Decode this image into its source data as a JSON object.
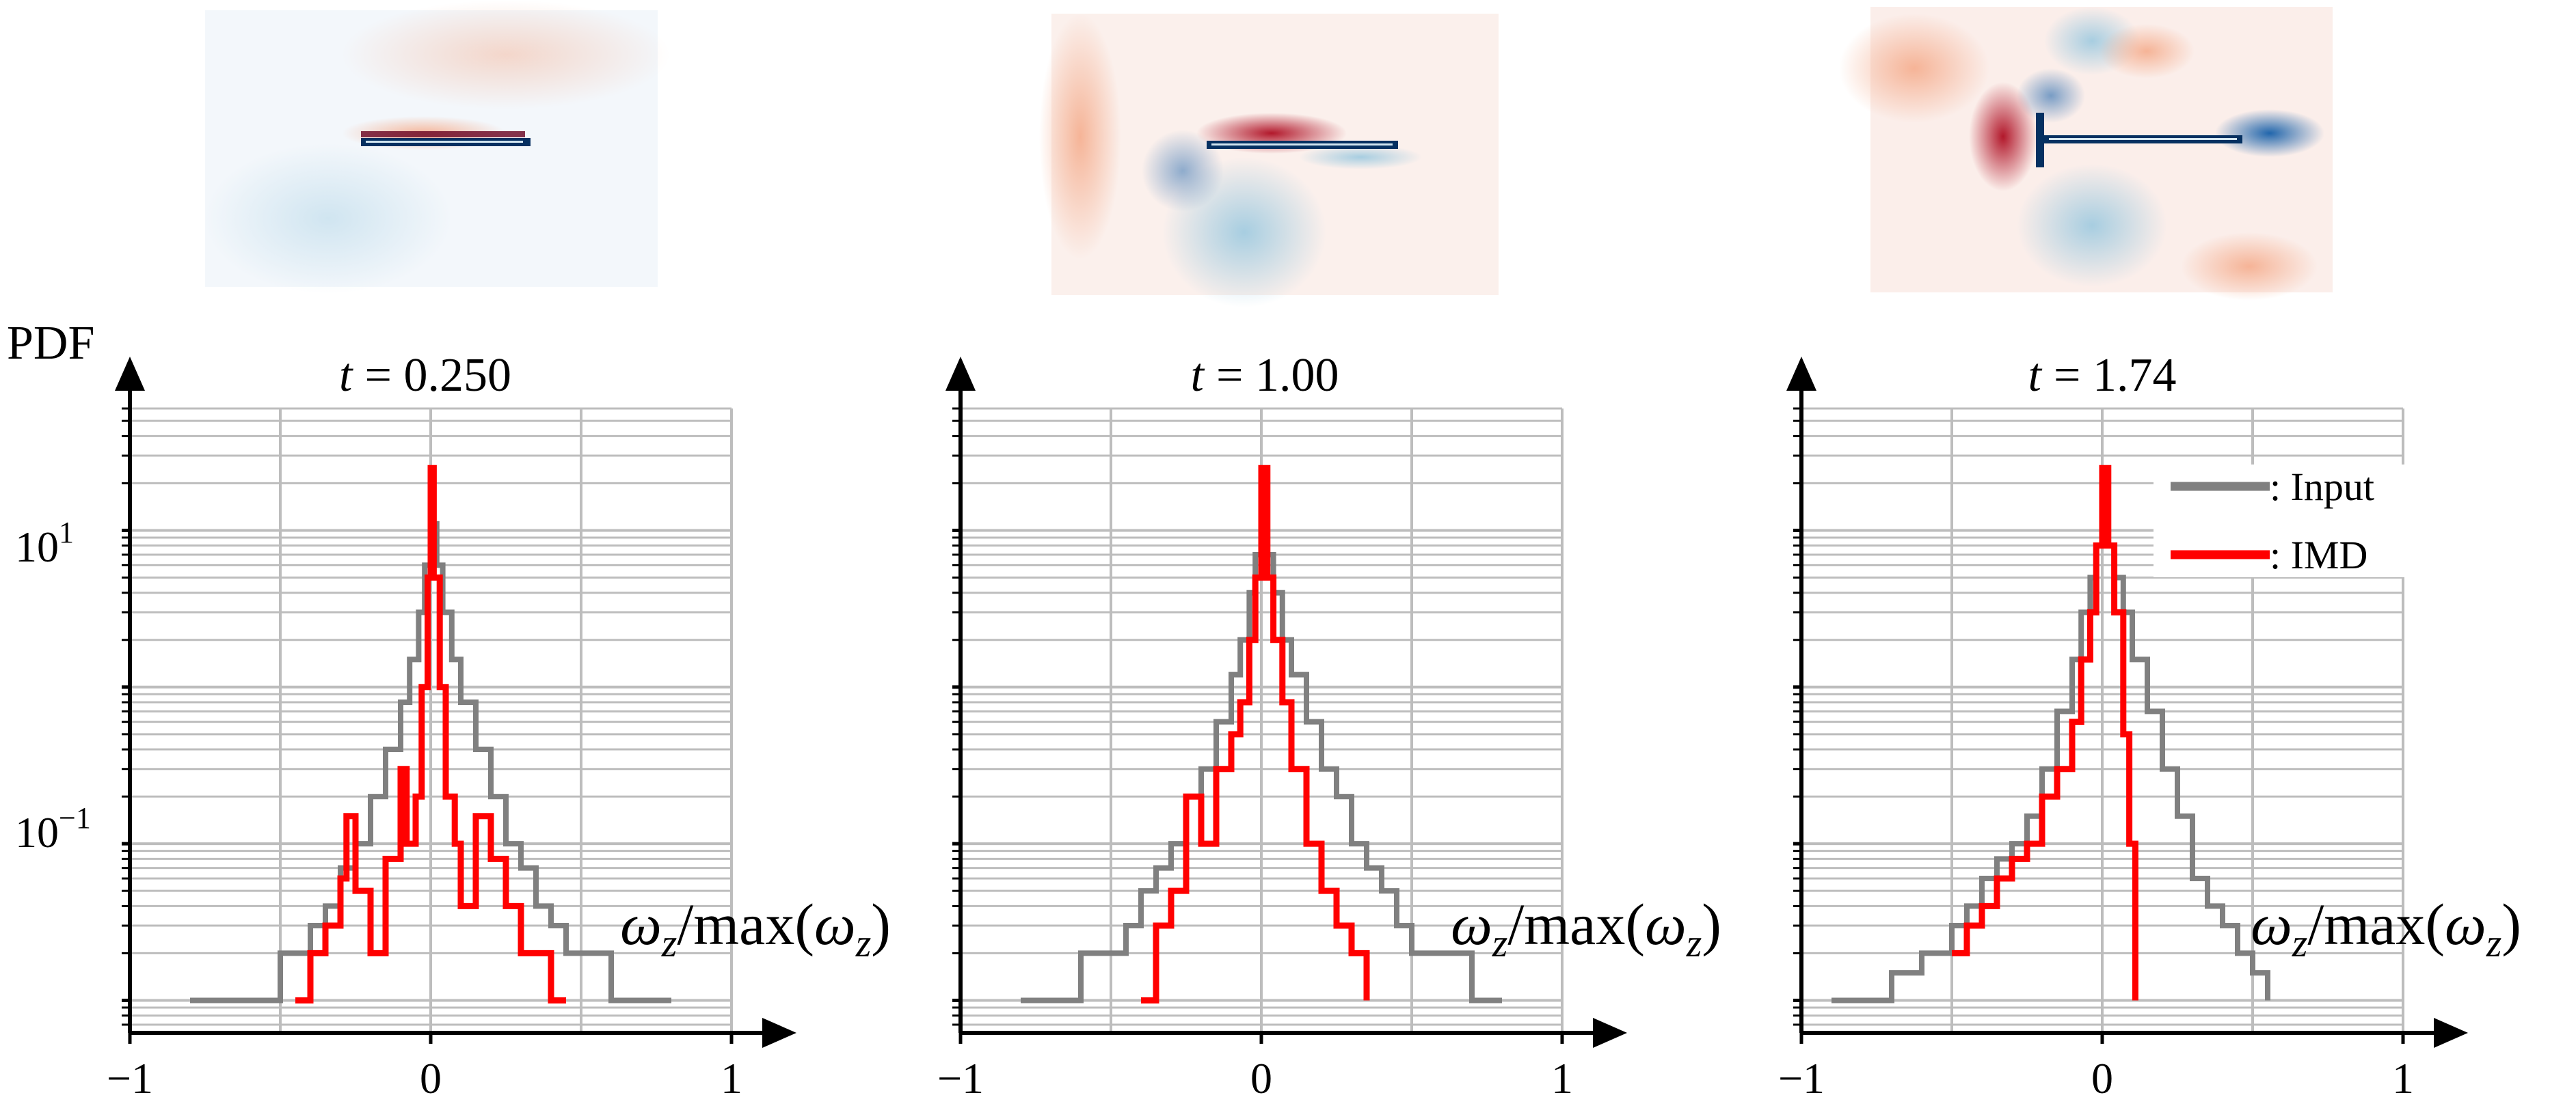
{
  "figure": {
    "ylabel": "PDF",
    "xlabel_parts": [
      "ω",
      "z",
      "/max(",
      "ω",
      "z",
      ")"
    ],
    "legend": [
      {
        "label": ": Input",
        "color": "#808080"
      },
      {
        "label": ": IMD",
        "color": "#ff0000"
      }
    ],
    "y_tick_labels": [
      {
        "base": "10",
        "exp": "1"
      },
      {
        "base": "10",
        "exp": "−1"
      }
    ],
    "colormap": {
      "negative": "#2166ac",
      "positive": "#b2182b",
      "neutral": "#f7f7f7"
    }
  },
  "chart_data": [
    {
      "type": "line",
      "title_prefix": "t",
      "title_value": "= 0.250",
      "title": "t = 0.250",
      "xlabel": "ωz/max(ωz)",
      "ylabel": "PDF",
      "xlim": [
        -1,
        1
      ],
      "ylim": [
        0.007,
        60
      ],
      "y_scale": "log",
      "x_ticks": [
        "−1",
        "0",
        "1"
      ],
      "grid": true,
      "series": [
        {
          "name": "Input",
          "color": "#808080",
          "points": [
            [
              -0.8,
              0.01
            ],
            [
              -0.7,
              0.01
            ],
            [
              -0.6,
              0.01
            ],
            [
              -0.5,
              0.02
            ],
            [
              -0.45,
              0.02
            ],
            [
              -0.4,
              0.03
            ],
            [
              -0.35,
              0.04
            ],
            [
              -0.3,
              0.07
            ],
            [
              -0.25,
              0.1
            ],
            [
              -0.2,
              0.2
            ],
            [
              -0.15,
              0.4
            ],
            [
              -0.1,
              0.8
            ],
            [
              -0.07,
              1.5
            ],
            [
              -0.04,
              3
            ],
            [
              -0.02,
              6
            ],
            [
              0,
              11
            ],
            [
              0.02,
              6
            ],
            [
              0.04,
              3
            ],
            [
              0.07,
              1.5
            ],
            [
              0.1,
              0.8
            ],
            [
              0.15,
              0.4
            ],
            [
              0.2,
              0.2
            ],
            [
              0.25,
              0.1
            ],
            [
              0.3,
              0.07
            ],
            [
              0.35,
              0.04
            ],
            [
              0.4,
              0.03
            ],
            [
              0.45,
              0.02
            ],
            [
              0.5,
              0.02
            ],
            [
              0.6,
              0.01
            ],
            [
              0.7,
              0.01
            ],
            [
              0.8,
              0.01
            ]
          ]
        },
        {
          "name": "IMD",
          "color": "#ff0000",
          "points": [
            [
              -0.45,
              0.01
            ],
            [
              -0.4,
              0.02
            ],
            [
              -0.35,
              0.03
            ],
            [
              -0.3,
              0.06
            ],
            [
              -0.28,
              0.15
            ],
            [
              -0.25,
              0.05
            ],
            [
              -0.2,
              0.02
            ],
            [
              -0.15,
              0.08
            ],
            [
              -0.1,
              0.3
            ],
            [
              -0.08,
              0.1
            ],
            [
              -0.05,
              0.2
            ],
            [
              -0.03,
              1
            ],
            [
              -0.01,
              5
            ],
            [
              0,
              25
            ],
            [
              0.01,
              5
            ],
            [
              0.03,
              1
            ],
            [
              0.05,
              0.2
            ],
            [
              0.08,
              0.1
            ],
            [
              0.1,
              0.04
            ],
            [
              0.15,
              0.15
            ],
            [
              0.2,
              0.08
            ],
            [
              0.25,
              0.04
            ],
            [
              0.3,
              0.02
            ],
            [
              0.35,
              0.02
            ],
            [
              0.4,
              0.01
            ],
            [
              0.45,
              0.01
            ]
          ]
        }
      ]
    },
    {
      "type": "line",
      "title_prefix": "t",
      "title_value": "= 1.00",
      "title": "t = 1.00",
      "xlabel": "ωz/max(ωz)",
      "ylabel": "PDF",
      "xlim": [
        -1,
        1
      ],
      "ylim": [
        0.007,
        60
      ],
      "y_scale": "log",
      "x_ticks": [
        "−1",
        "0",
        "1"
      ],
      "grid": true,
      "series": [
        {
          "name": "Input",
          "color": "#808080",
          "points": [
            [
              -0.8,
              0.01
            ],
            [
              -0.7,
              0.01
            ],
            [
              -0.6,
              0.02
            ],
            [
              -0.5,
              0.02
            ],
            [
              -0.45,
              0.03
            ],
            [
              -0.4,
              0.05
            ],
            [
              -0.35,
              0.07
            ],
            [
              -0.3,
              0.1
            ],
            [
              -0.25,
              0.2
            ],
            [
              -0.2,
              0.3
            ],
            [
              -0.15,
              0.6
            ],
            [
              -0.1,
              1.2
            ],
            [
              -0.07,
              2
            ],
            [
              -0.04,
              4
            ],
            [
              -0.02,
              7
            ],
            [
              0,
              11
            ],
            [
              0.02,
              7
            ],
            [
              0.04,
              4
            ],
            [
              0.07,
              2
            ],
            [
              0.1,
              1.2
            ],
            [
              0.15,
              0.6
            ],
            [
              0.2,
              0.3
            ],
            [
              0.25,
              0.2
            ],
            [
              0.3,
              0.1
            ],
            [
              0.35,
              0.07
            ],
            [
              0.4,
              0.05
            ],
            [
              0.45,
              0.03
            ],
            [
              0.5,
              0.02
            ],
            [
              0.6,
              0.02
            ],
            [
              0.7,
              0.01
            ],
            [
              0.8,
              0.01
            ]
          ]
        },
        {
          "name": "IMD",
          "color": "#ff0000",
          "points": [
            [
              -0.4,
              0.01
            ],
            [
              -0.35,
              0.03
            ],
            [
              -0.3,
              0.05
            ],
            [
              -0.25,
              0.2
            ],
            [
              -0.2,
              0.1
            ],
            [
              -0.15,
              0.3
            ],
            [
              -0.1,
              0.5
            ],
            [
              -0.07,
              0.8
            ],
            [
              -0.04,
              2
            ],
            [
              -0.02,
              5
            ],
            [
              0,
              25
            ],
            [
              0.02,
              5
            ],
            [
              0.04,
              2
            ],
            [
              0.07,
              0.8
            ],
            [
              0.1,
              0.3
            ],
            [
              0.15,
              0.1
            ],
            [
              0.2,
              0.05
            ],
            [
              0.25,
              0.03
            ],
            [
              0.3,
              0.02
            ],
            [
              0.35,
              0.01
            ]
          ]
        }
      ]
    },
    {
      "type": "line",
      "title_prefix": "t",
      "title_value": "= 1.74",
      "title": "t = 1.74",
      "xlabel": "ωz/max(ωz)",
      "ylabel": "PDF",
      "xlim": [
        -1,
        1
      ],
      "ylim": [
        0.007,
        60
      ],
      "y_scale": "log",
      "x_ticks": [
        "−1",
        "0",
        "1"
      ],
      "grid": true,
      "series": [
        {
          "name": "Input",
          "color": "#808080",
          "points": [
            [
              -0.9,
              0.01
            ],
            [
              -0.8,
              0.01
            ],
            [
              -0.7,
              0.015
            ],
            [
              -0.6,
              0.02
            ],
            [
              -0.5,
              0.03
            ],
            [
              -0.45,
              0.04
            ],
            [
              -0.4,
              0.06
            ],
            [
              -0.35,
              0.08
            ],
            [
              -0.3,
              0.1
            ],
            [
              -0.25,
              0.15
            ],
            [
              -0.2,
              0.3
            ],
            [
              -0.15,
              0.7
            ],
            [
              -0.1,
              1.5
            ],
            [
              -0.07,
              3
            ],
            [
              -0.04,
              5
            ],
            [
              -0.02,
              8
            ],
            [
              0,
              11
            ],
            [
              0.02,
              8
            ],
            [
              0.04,
              5
            ],
            [
              0.07,
              3
            ],
            [
              0.1,
              1.5
            ],
            [
              0.15,
              0.7
            ],
            [
              0.2,
              0.3
            ],
            [
              0.25,
              0.15
            ],
            [
              0.3,
              0.06
            ],
            [
              0.35,
              0.04
            ],
            [
              0.4,
              0.03
            ],
            [
              0.45,
              0.02
            ],
            [
              0.5,
              0.015
            ],
            [
              0.55,
              0.01
            ]
          ]
        },
        {
          "name": "IMD",
          "color": "#ff0000",
          "points": [
            [
              -0.5,
              0.02
            ],
            [
              -0.45,
              0.03
            ],
            [
              -0.4,
              0.04
            ],
            [
              -0.35,
              0.06
            ],
            [
              -0.3,
              0.08
            ],
            [
              -0.25,
              0.1
            ],
            [
              -0.2,
              0.2
            ],
            [
              -0.15,
              0.3
            ],
            [
              -0.1,
              0.6
            ],
            [
              -0.07,
              1.5
            ],
            [
              -0.04,
              3
            ],
            [
              -0.02,
              8
            ],
            [
              0,
              25
            ],
            [
              0.02,
              8
            ],
            [
              0.04,
              3
            ],
            [
              0.07,
              0.5
            ],
            [
              0.09,
              0.1
            ],
            [
              0.11,
              0.01
            ]
          ]
        }
      ]
    }
  ]
}
